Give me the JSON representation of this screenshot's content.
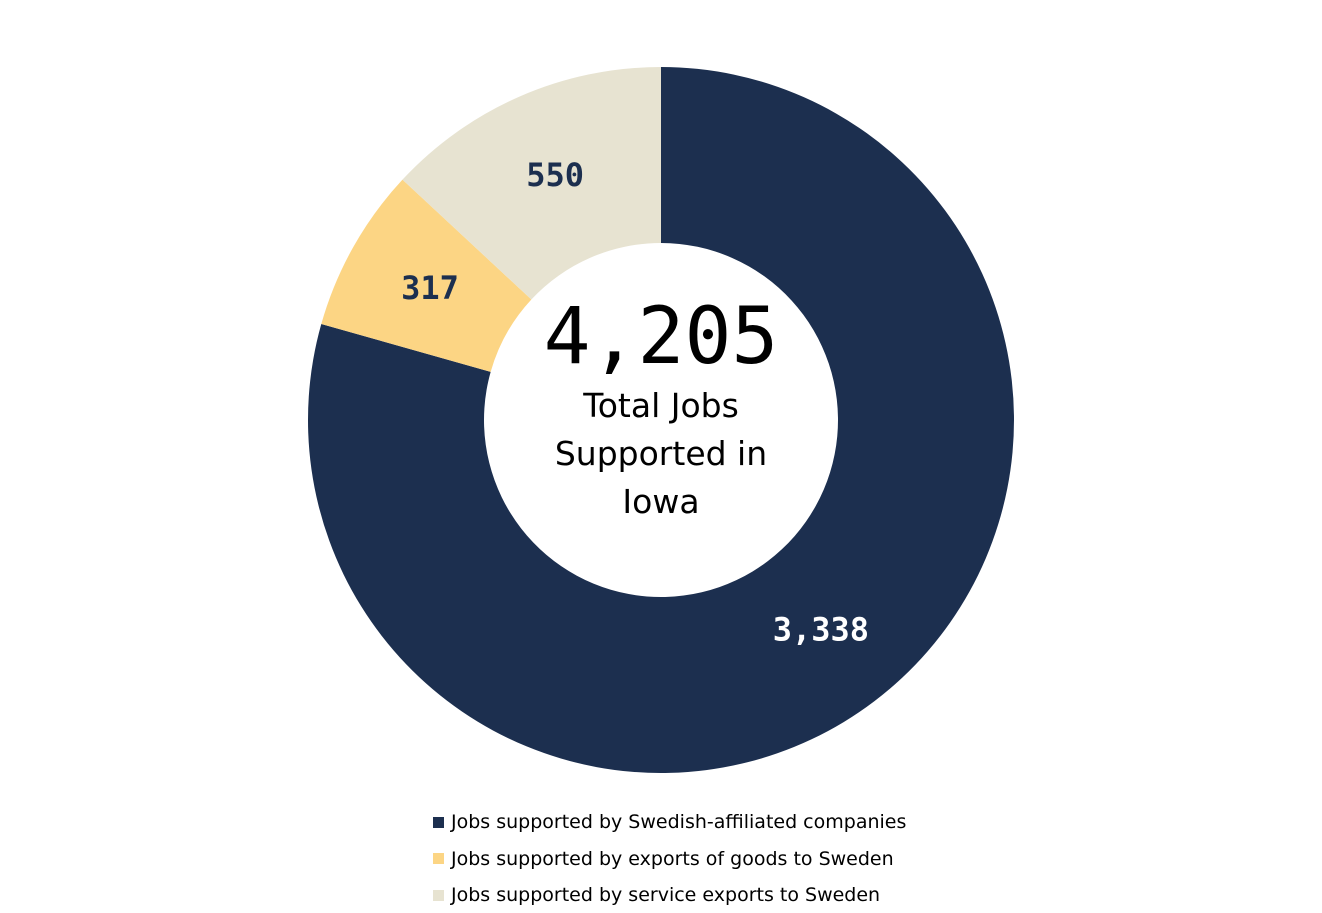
{
  "chart_data": {
    "type": "donut",
    "categories": [
      "Jobs supported by Swedish-affiliated companies",
      "Jobs supported by exports of goods to Sweden",
      "Jobs supported by service exports to Sweden"
    ],
    "values": [
      3338,
      317,
      550
    ],
    "value_labels": [
      "3,338",
      "317",
      "550"
    ],
    "colors": [
      "#1c2f4f",
      "#fcd584",
      "#e7e3d1"
    ],
    "label_colors": [
      "#ffffff",
      "#1c2f4f",
      "#1c2f4f"
    ],
    "center_text": "4,205",
    "center_subtitle": "Total Jobs Supported in Iowa",
    "legend": "bottom"
  }
}
